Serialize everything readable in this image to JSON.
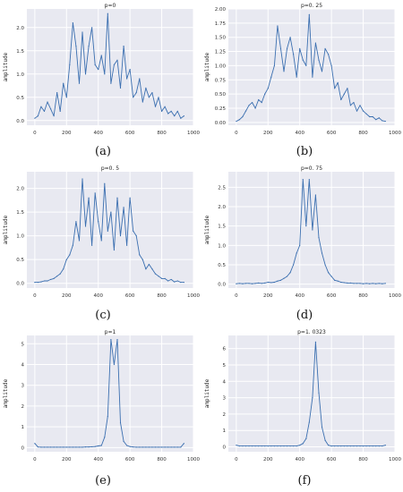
{
  "figure": {
    "captions": [
      "(a)",
      "(b)",
      "(c)",
      "(d)",
      "(e)",
      "(f)"
    ],
    "line_color": "#3b6fb0",
    "plot_bg": "#e8e9f1",
    "grid_color": "#ffffff"
  },
  "chart_data": [
    {
      "type": "line",
      "title": "p=0",
      "ylabel": "amplitude",
      "xlabel": "",
      "xlim": [
        -50,
        1000
      ],
      "ylim": [
        -0.1,
        2.4
      ],
      "xticks": [
        0,
        200,
        400,
        600,
        800,
        1000
      ],
      "yticks": [
        0.0,
        0.5,
        1.0,
        1.5,
        2.0
      ],
      "ytick_labels": [
        "0.0",
        "0.5",
        "1.0",
        "1.5",
        "2.0"
      ],
      "grid": true,
      "x": [
        0,
        20,
        40,
        60,
        80,
        100,
        120,
        140,
        160,
        180,
        200,
        220,
        240,
        260,
        280,
        300,
        320,
        340,
        360,
        380,
        400,
        420,
        440,
        460,
        480,
        500,
        520,
        540,
        560,
        580,
        600,
        620,
        640,
        660,
        680,
        700,
        720,
        740,
        760,
        780,
        800,
        820,
        840,
        860,
        880,
        900,
        920,
        940
      ],
      "y": [
        0.05,
        0.1,
        0.3,
        0.2,
        0.4,
        0.25,
        0.1,
        0.6,
        0.2,
        0.8,
        0.5,
        1.2,
        2.1,
        1.6,
        0.8,
        1.9,
        1.0,
        1.6,
        2.0,
        1.2,
        1.1,
        1.4,
        1.0,
        2.3,
        0.8,
        1.2,
        1.3,
        0.7,
        1.6,
        0.9,
        1.1,
        0.5,
        0.6,
        0.9,
        0.4,
        0.7,
        0.5,
        0.6,
        0.3,
        0.5,
        0.2,
        0.3,
        0.15,
        0.2,
        0.1,
        0.2,
        0.05,
        0.1
      ]
    },
    {
      "type": "line",
      "title": "p=0. 25",
      "ylabel": "amplitude",
      "xlabel": "",
      "xlim": [
        -50,
        1000
      ],
      "ylim": [
        -0.05,
        2.0
      ],
      "xticks": [
        0,
        200,
        400,
        600,
        800,
        1000
      ],
      "yticks": [
        0.0,
        0.25,
        0.5,
        0.75,
        1.0,
        1.25,
        1.5,
        1.75,
        2.0
      ],
      "ytick_labels": [
        "0.00",
        "0.25",
        "0.50",
        "0.75",
        "1.00",
        "1.25",
        "1.50",
        "1.75",
        "2.00"
      ],
      "grid": true,
      "x": [
        0,
        20,
        40,
        60,
        80,
        100,
        120,
        140,
        160,
        180,
        200,
        220,
        240,
        260,
        280,
        300,
        320,
        340,
        360,
        380,
        400,
        420,
        440,
        460,
        480,
        500,
        520,
        540,
        560,
        580,
        600,
        620,
        640,
        660,
        680,
        700,
        720,
        740,
        760,
        780,
        800,
        820,
        840,
        860,
        880,
        900,
        920,
        940
      ],
      "y": [
        0.02,
        0.05,
        0.1,
        0.2,
        0.3,
        0.35,
        0.25,
        0.4,
        0.35,
        0.5,
        0.6,
        0.8,
        1.0,
        1.7,
        1.3,
        0.9,
        1.3,
        1.5,
        1.2,
        0.8,
        1.3,
        1.1,
        1.0,
        1.9,
        0.8,
        1.4,
        1.1,
        0.9,
        1.3,
        1.2,
        1.0,
        0.6,
        0.7,
        0.4,
        0.5,
        0.6,
        0.3,
        0.35,
        0.2,
        0.3,
        0.2,
        0.15,
        0.1,
        0.1,
        0.05,
        0.08,
        0.03,
        0.02
      ]
    },
    {
      "type": "line",
      "title": "p=0. 5",
      "ylabel": "amplitude",
      "xlabel": "",
      "xlim": [
        -50,
        1000
      ],
      "ylim": [
        -0.1,
        2.35
      ],
      "xticks": [
        0,
        200,
        400,
        600,
        800,
        1000
      ],
      "yticks": [
        0.0,
        0.5,
        1.0,
        1.5,
        2.0
      ],
      "ytick_labels": [
        "0.0",
        "0.5",
        "1.0",
        "1.5",
        "2.0"
      ],
      "grid": true,
      "x": [
        0,
        20,
        40,
        60,
        80,
        100,
        120,
        140,
        160,
        180,
        200,
        220,
        240,
        260,
        280,
        300,
        320,
        340,
        360,
        380,
        400,
        420,
        440,
        460,
        480,
        500,
        520,
        540,
        560,
        580,
        600,
        620,
        640,
        660,
        680,
        700,
        720,
        740,
        760,
        780,
        800,
        820,
        840,
        860,
        880,
        900,
        920,
        940
      ],
      "y": [
        0.02,
        0.02,
        0.03,
        0.05,
        0.05,
        0.08,
        0.1,
        0.15,
        0.2,
        0.3,
        0.5,
        0.6,
        0.8,
        1.3,
        0.9,
        2.2,
        1.2,
        1.8,
        0.8,
        1.9,
        1.3,
        0.9,
        2.1,
        1.1,
        1.5,
        0.7,
        1.8,
        1.0,
        1.6,
        0.8,
        1.8,
        1.1,
        1.0,
        0.6,
        0.5,
        0.3,
        0.4,
        0.3,
        0.2,
        0.15,
        0.1,
        0.1,
        0.05,
        0.08,
        0.03,
        0.05,
        0.02,
        0.02
      ]
    },
    {
      "type": "line",
      "title": "p=0. 75",
      "ylabel": "amplitude",
      "xlabel": "",
      "xlim": [
        -50,
        1000
      ],
      "ylim": [
        -0.1,
        2.9
      ],
      "xticks": [
        0,
        200,
        400,
        600,
        800,
        1000
      ],
      "yticks": [
        0.0,
        0.5,
        1.0,
        1.5,
        2.0,
        2.5
      ],
      "ytick_labels": [
        "0.0",
        "0.5",
        "1.0",
        "1.5",
        "2.0",
        "2.5"
      ],
      "grid": true,
      "x": [
        0,
        20,
        40,
        60,
        80,
        100,
        120,
        140,
        160,
        180,
        200,
        220,
        240,
        260,
        280,
        300,
        320,
        340,
        360,
        380,
        400,
        420,
        440,
        460,
        480,
        500,
        520,
        540,
        560,
        580,
        600,
        620,
        640,
        660,
        680,
        700,
        720,
        740,
        760,
        780,
        800,
        820,
        840,
        860,
        880,
        900,
        920,
        940
      ],
      "y": [
        0.01,
        0.02,
        0.01,
        0.02,
        0.02,
        0.01,
        0.02,
        0.03,
        0.02,
        0.03,
        0.05,
        0.04,
        0.05,
        0.08,
        0.1,
        0.15,
        0.2,
        0.3,
        0.5,
        0.8,
        1.0,
        2.7,
        1.5,
        2.7,
        1.4,
        2.3,
        1.2,
        0.8,
        0.5,
        0.3,
        0.2,
        0.1,
        0.08,
        0.05,
        0.04,
        0.03,
        0.03,
        0.02,
        0.02,
        0.02,
        0.01,
        0.02,
        0.01,
        0.02,
        0.01,
        0.02,
        0.01,
        0.02
      ]
    },
    {
      "type": "line",
      "title": "p=1",
      "ylabel": "amplitude",
      "xlabel": "",
      "xlim": [
        -50,
        1000
      ],
      "ylim": [
        -0.2,
        5.4
      ],
      "xticks": [
        0,
        200,
        400,
        600,
        800,
        1000
      ],
      "yticks": [
        0,
        1,
        2,
        3,
        4,
        5
      ],
      "ytick_labels": [
        "0",
        "1",
        "2",
        "3",
        "4",
        "5"
      ],
      "grid": true,
      "x": [
        0,
        20,
        40,
        60,
        80,
        100,
        120,
        140,
        160,
        180,
        200,
        220,
        240,
        260,
        280,
        300,
        320,
        340,
        360,
        380,
        400,
        420,
        440,
        460,
        480,
        500,
        520,
        540,
        560,
        580,
        600,
        620,
        640,
        660,
        680,
        700,
        720,
        740,
        760,
        780,
        800,
        820,
        840,
        860,
        880,
        900,
        920,
        940
      ],
      "y": [
        0.2,
        0.03,
        0.02,
        0.02,
        0.02,
        0.02,
        0.02,
        0.02,
        0.02,
        0.02,
        0.02,
        0.02,
        0.02,
        0.02,
        0.02,
        0.02,
        0.03,
        0.03,
        0.04,
        0.05,
        0.08,
        0.1,
        0.5,
        1.5,
        5.2,
        4.0,
        5.2,
        1.2,
        0.3,
        0.1,
        0.05,
        0.03,
        0.02,
        0.02,
        0.02,
        0.02,
        0.02,
        0.02,
        0.02,
        0.02,
        0.02,
        0.02,
        0.02,
        0.02,
        0.02,
        0.02,
        0.02,
        0.2
      ]
    },
    {
      "type": "line",
      "title": "p=1. 0323",
      "ylabel": "amplitude",
      "xlabel": "",
      "xlim": [
        -50,
        1000
      ],
      "ylim": [
        -0.3,
        6.8
      ],
      "xticks": [
        0,
        200,
        400,
        600,
        800,
        1000
      ],
      "yticks": [
        0,
        1,
        2,
        3,
        4,
        5,
        6
      ],
      "ytick_labels": [
        "0",
        "1",
        "2",
        "3",
        "4",
        "5",
        "6"
      ],
      "grid": true,
      "x": [
        0,
        20,
        40,
        60,
        80,
        100,
        120,
        140,
        160,
        180,
        200,
        220,
        240,
        260,
        280,
        300,
        320,
        340,
        360,
        380,
        400,
        420,
        440,
        460,
        480,
        500,
        520,
        540,
        560,
        580,
        600,
        620,
        640,
        660,
        680,
        700,
        720,
        740,
        760,
        780,
        800,
        820,
        840,
        860,
        880,
        900,
        920,
        940
      ],
      "y": [
        0.1,
        0.05,
        0.05,
        0.05,
        0.05,
        0.05,
        0.05,
        0.05,
        0.05,
        0.05,
        0.05,
        0.05,
        0.05,
        0.05,
        0.05,
        0.05,
        0.05,
        0.05,
        0.05,
        0.05,
        0.1,
        0.2,
        0.5,
        1.5,
        3.0,
        6.4,
        3.3,
        1.2,
        0.4,
        0.1,
        0.05,
        0.05,
        0.05,
        0.05,
        0.05,
        0.05,
        0.05,
        0.05,
        0.05,
        0.05,
        0.05,
        0.05,
        0.05,
        0.05,
        0.05,
        0.05,
        0.05,
        0.1
      ]
    }
  ]
}
